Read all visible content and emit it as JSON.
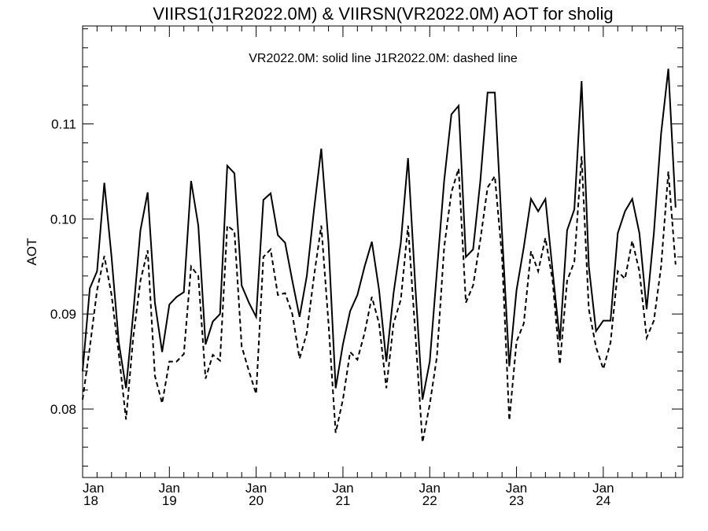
{
  "chart_data": {
    "type": "line",
    "title": "VIIRS1(J1R2022.0M) & VIIRSN(VR2022.0M)  AOT for sholig",
    "legend_text": "VR2022.0M: solid line   J1R2022.0M: dashed line",
    "xlabel": "",
    "ylabel": "AOT",
    "ylim": [
      0.0728,
      0.1203
    ],
    "xlim": [
      0,
      83
    ],
    "grid": false,
    "x_tick_labels": [
      {
        "month": "Jan",
        "year": "18"
      },
      {
        "month": "Jan",
        "year": "19"
      },
      {
        "month": "Jan",
        "year": "20"
      },
      {
        "month": "Jan",
        "year": "21"
      },
      {
        "month": "Jan",
        "year": "22"
      },
      {
        "month": "Jan",
        "year": "23"
      },
      {
        "month": "Jan",
        "year": "24"
      }
    ],
    "y_tick_labels": [
      "0.08",
      "0.09",
      "0.10",
      "0.11"
    ],
    "y_ticks": [
      0.08,
      0.09,
      0.1,
      0.11
    ],
    "series": [
      {
        "name": "VR2022.0M",
        "style": "solid",
        "values": [
          0.084,
          0.0927,
          0.0945,
          0.1038,
          0.096,
          0.087,
          0.0822,
          0.09,
          0.0988,
          0.1028,
          0.0912,
          0.086,
          0.091,
          0.0918,
          0.0923,
          0.104,
          0.0993,
          0.0868,
          0.0892,
          0.09,
          0.1056,
          0.1048,
          0.093,
          0.0912,
          0.0897,
          0.102,
          0.1027,
          0.0983,
          0.0975,
          0.0935,
          0.0897,
          0.094,
          0.101,
          0.1074,
          0.0975,
          0.0822,
          0.0868,
          0.0903,
          0.092,
          0.095,
          0.0976,
          0.0925,
          0.085,
          0.0922,
          0.0975,
          0.1064,
          0.093,
          0.081,
          0.085,
          0.0945,
          0.104,
          0.111,
          0.1119,
          0.096,
          0.0968,
          0.104,
          0.1133,
          0.1133,
          0.0985,
          0.0845,
          0.0925,
          0.097,
          0.1021,
          0.1008,
          0.1021,
          0.0945,
          0.0872,
          0.0988,
          0.101,
          0.1145,
          0.095,
          0.0882,
          0.0893,
          0.0893,
          0.0985,
          0.1008,
          0.1021,
          0.0985,
          0.0905,
          0.0985,
          0.109,
          0.1158,
          0.1012
        ]
      },
      {
        "name": "J1R2022.0M",
        "style": "dashed",
        "values": [
          0.081,
          0.0865,
          0.0925,
          0.0961,
          0.092,
          0.0858,
          0.0789,
          0.0875,
          0.0935,
          0.0967,
          0.0835,
          0.0806,
          0.085,
          0.085,
          0.0858,
          0.095,
          0.094,
          0.0832,
          0.0857,
          0.0851,
          0.0993,
          0.0987,
          0.0866,
          0.084,
          0.0816,
          0.096,
          0.0968,
          0.092,
          0.0922,
          0.09,
          0.0853,
          0.088,
          0.094,
          0.0993,
          0.089,
          0.0775,
          0.081,
          0.086,
          0.0852,
          0.088,
          0.0918,
          0.089,
          0.0822,
          0.089,
          0.0915,
          0.0993,
          0.088,
          0.0765,
          0.0805,
          0.0855,
          0.097,
          0.1028,
          0.1053,
          0.0912,
          0.093,
          0.0978,
          0.1033,
          0.1045,
          0.096,
          0.0788,
          0.0871,
          0.089,
          0.0966,
          0.0945,
          0.098,
          0.0935,
          0.0847,
          0.0935,
          0.0955,
          0.1066,
          0.0905,
          0.0865,
          0.0842,
          0.087,
          0.0945,
          0.0937,
          0.0977,
          0.0945,
          0.0875,
          0.0893,
          0.095,
          0.105,
          0.0952
        ]
      }
    ]
  }
}
